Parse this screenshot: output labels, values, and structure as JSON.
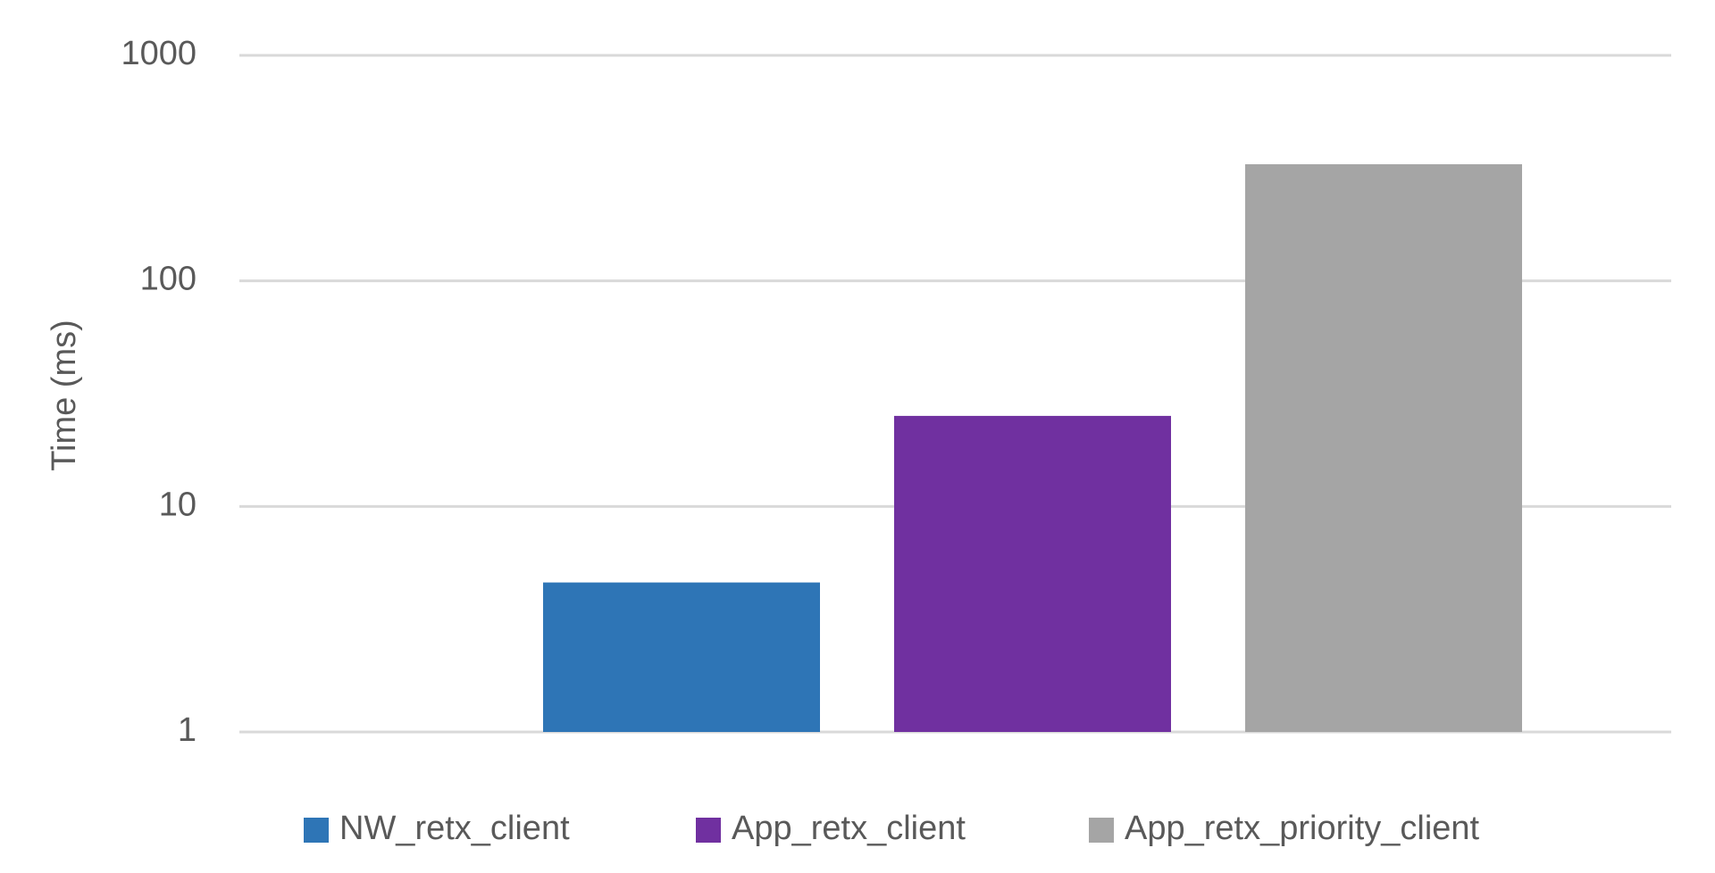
{
  "chart_data": {
    "type": "bar",
    "y_label": "Time (ms)",
    "log_scale": true,
    "grid": true,
    "categories": [
      null
    ],
    "series": [
      {
        "name": "NW_retx_client",
        "color": "#2e75b6",
        "values": [
          4.6
        ]
      },
      {
        "name": "App_retx_client",
        "color": "#7030a0",
        "values": [
          25.2
        ]
      },
      {
        "name": "App_retx_priority_client",
        "color": "#a5a5a5",
        "values": [
          329
        ]
      }
    ],
    "ylim": [
      1,
      1000
    ],
    "yticks": [
      1,
      10,
      100,
      1000
    ],
    "legend": "bottom"
  }
}
